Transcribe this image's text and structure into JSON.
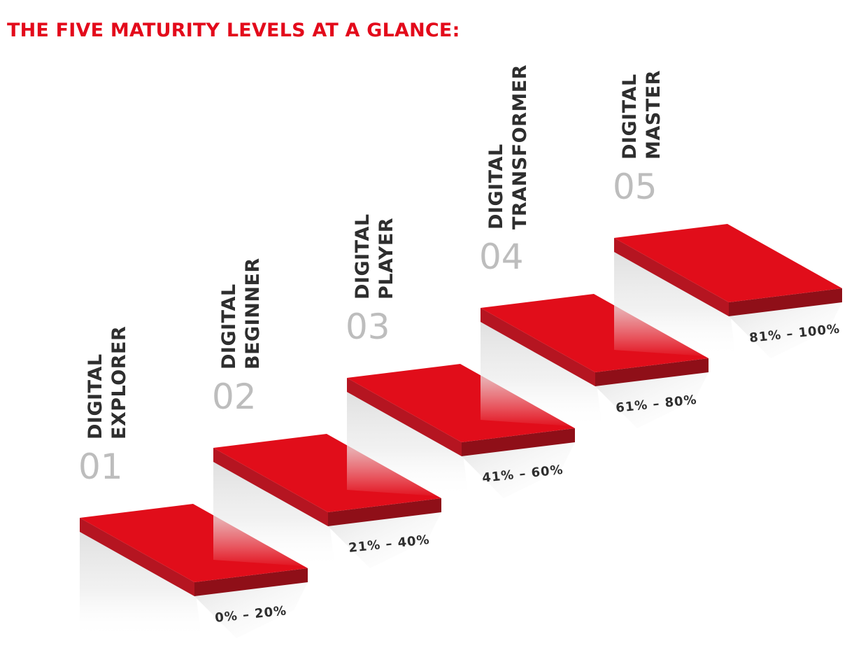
{
  "title": "THE FIVE MATURITY LEVELS AT A GLANCE:",
  "colors": {
    "accent": "#e30a1b",
    "step_top": "#e10d1a",
    "step_front": "#b51521",
    "step_side": "#8f0f18",
    "label": "#2e2e2e",
    "number": "#bdbdbd"
  },
  "levels": [
    {
      "number": "01",
      "line1": "DIGITAL",
      "line2": "EXPLORER",
      "range": "0% – 20%"
    },
    {
      "number": "02",
      "line1": "DIGITAL",
      "line2": "BEGINNER",
      "range": "21% – 40%"
    },
    {
      "number": "03",
      "line1": "DIGITAL",
      "line2": "PLAYER",
      "range": "41% – 60%"
    },
    {
      "number": "04",
      "line1": "DIGITAL",
      "line2": "TRANSFORMER",
      "range": "61% – 80%"
    },
    {
      "number": "05",
      "line1": "DIGITAL",
      "line2": "MASTER",
      "range": "81% – 100%"
    }
  ]
}
